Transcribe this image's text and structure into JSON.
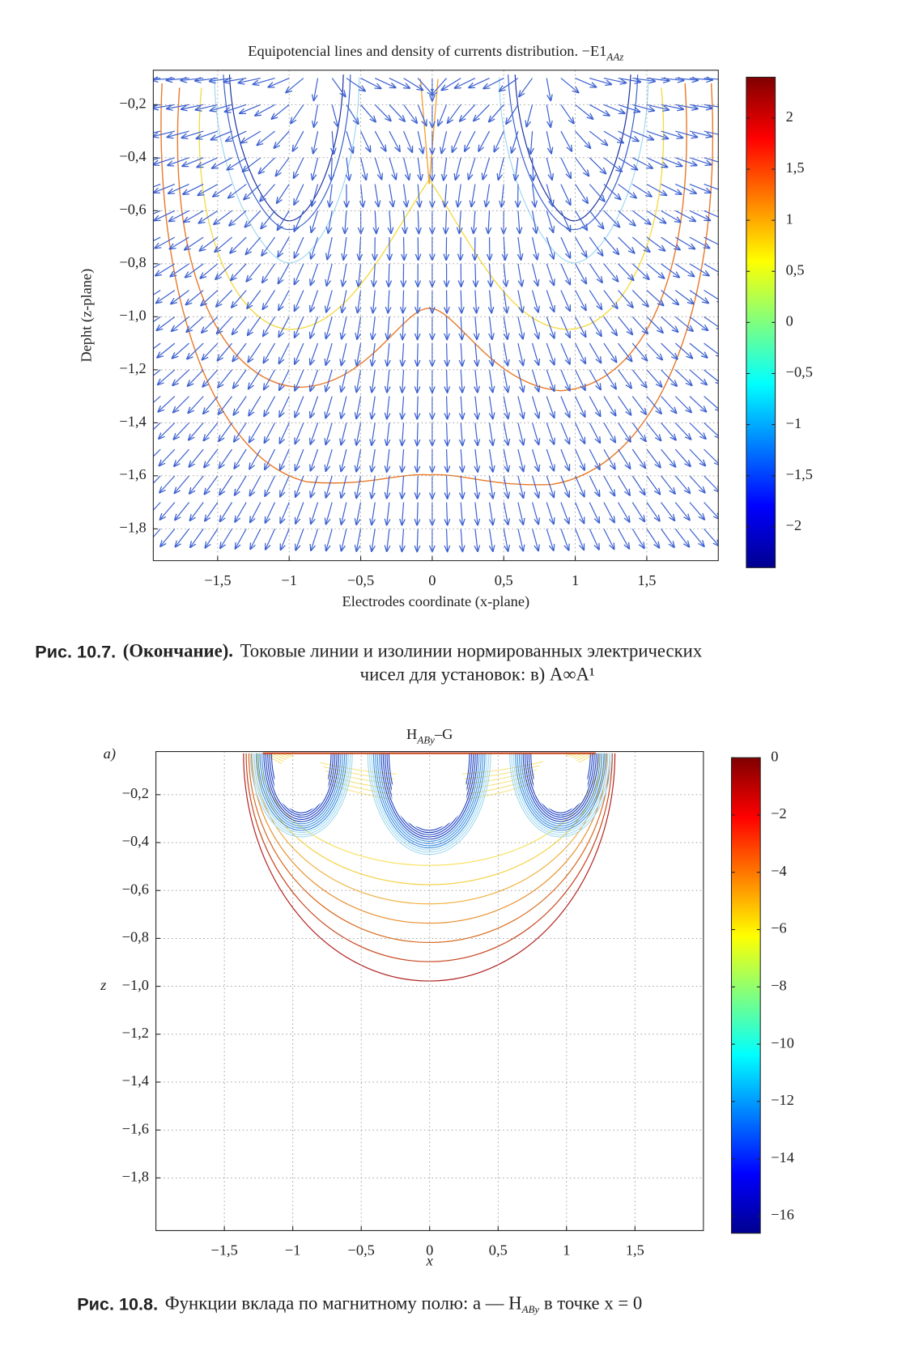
{
  "figures": [
    {
      "type": "contour",
      "title": "Equipotencial lines and density of currents distribution. −E1",
      "title_sub": "AAz",
      "xlabel": "Electrodes coordinate (x-plane)",
      "ylabel": "Depht (z-plane)",
      "xlim": [
        -1.95,
        2.0
      ],
      "ylim": [
        -1.92,
        -0.07
      ],
      "xticks": [
        {
          "value": -1.5,
          "label": "−1,5"
        },
        {
          "value": -1,
          "label": "−1"
        },
        {
          "value": -0.5,
          "label": "−0,5"
        },
        0,
        {
          "value": 0.5,
          "label": "0,5"
        },
        1,
        {
          "value": 1.5,
          "label": "1,5"
        }
      ],
      "yticks": [
        {
          "value": -0.2,
          "label": "−0,2"
        },
        {
          "value": -0.4,
          "label": "−0,4"
        },
        {
          "value": -0.6,
          "label": "−0,6"
        },
        {
          "value": -0.8,
          "label": "−0,8"
        },
        {
          "value": -1.0,
          "label": "−1,0"
        },
        {
          "value": -1.2,
          "label": "−1,2"
        },
        {
          "value": -1.4,
          "label": "−1,4"
        },
        {
          "value": -1.6,
          "label": "−1,6"
        },
        {
          "value": -1.8,
          "label": "−1,8"
        }
      ],
      "grid": true,
      "colorbar": {
        "clim": [
          -2.4,
          2.4
        ],
        "ticks": [
          2,
          {
            "value": 1.5,
            "label": "1,5"
          },
          1,
          {
            "value": 0.5,
            "label": "0,5"
          },
          0,
          {
            "value": -0.5,
            "label": "−0,5"
          },
          {
            "value": -1,
            "label": "−1"
          },
          {
            "value": -1.5,
            "label": "−1,5"
          },
          {
            "value": -2,
            "label": "−2"
          }
        ]
      },
      "caption": {
        "number": "Рис. 10.7.",
        "note": "(Окончание).",
        "lines": [
          "Токовые линии и изолинии нормированных электрических",
          "чисел для установок: в) A∞A¹"
        ]
      }
    },
    {
      "type": "contour",
      "title": "H",
      "title_sub": "ABy",
      "title_tail": "–G",
      "panel_label": "a)",
      "xlabel": "x",
      "ylabel": "z",
      "xlim": [
        -2.0,
        2.0
      ],
      "ylim": [
        -2.02,
        -0.02
      ],
      "xticks": [
        {
          "value": -1.5,
          "label": "−1,5"
        },
        {
          "value": -1,
          "label": "−1"
        },
        {
          "value": -0.5,
          "label": "−0,5"
        },
        0,
        {
          "value": 0.5,
          "label": "0,5"
        },
        1,
        {
          "value": 1.5,
          "label": "1,5"
        }
      ],
      "yticks": [
        {
          "value": -0.2,
          "label": "−0,2"
        },
        {
          "value": -0.4,
          "label": "−0,4"
        },
        {
          "value": -0.6,
          "label": "−0,6"
        },
        {
          "value": -0.8,
          "label": "−0,8"
        },
        {
          "value": -1.0,
          "label": "−1,0"
        },
        {
          "value": -1.2,
          "label": "−1,2"
        },
        {
          "value": -1.4,
          "label": "−1,4"
        },
        {
          "value": -1.6,
          "label": "−1,6"
        },
        {
          "value": -1.8,
          "label": "−1,8"
        }
      ],
      "grid": true,
      "colorbar": {
        "clim": [
          -16.6,
          0
        ],
        "ticks": [
          0,
          {
            "value": -2,
            "label": "−2"
          },
          {
            "value": -4,
            "label": "−4"
          },
          {
            "value": -6,
            "label": "−6"
          },
          {
            "value": -8,
            "label": "−8"
          },
          {
            "value": -10,
            "label": "−10"
          },
          {
            "value": -12,
            "label": "−12"
          },
          {
            "value": -14,
            "label": "−14"
          },
          {
            "value": -16,
            "label": "−16"
          }
        ]
      },
      "caption": {
        "number": "Рис. 10.8.",
        "text": "Функции вклада по магнитному полю: a — H",
        "text_sub": "ABy",
        "text_tail": " в точке x = 0"
      }
    }
  ]
}
